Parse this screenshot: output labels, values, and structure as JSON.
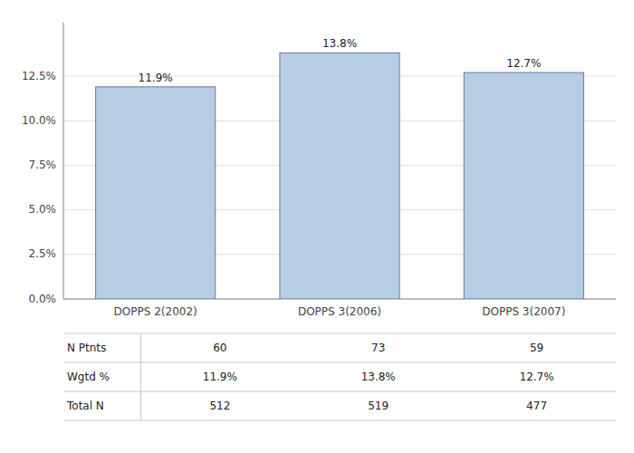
{
  "chart_data": {
    "type": "bar",
    "categories": [
      "DOPPS 2(2002)",
      "DOPPS 3(2006)",
      "DOPPS 3(2007)"
    ],
    "values": [
      11.9,
      13.8,
      12.7
    ],
    "value_labels": [
      "11.9%",
      "13.8%",
      "12.7%"
    ],
    "data_labels": true,
    "color": "#b8cce4",
    "ylim": [
      0,
      15.5
    ],
    "yticks": [
      {
        "value": 0,
        "label": "0.0%"
      },
      {
        "value": 2.5,
        "label": "2.5%"
      },
      {
        "value": 5.0,
        "label": "5.0%"
      },
      {
        "value": 7.5,
        "label": "7.5%"
      },
      {
        "value": 10.0,
        "label": "10.0%"
      },
      {
        "value": 12.5,
        "label": "12.5%"
      }
    ],
    "grid": true,
    "table": {
      "row_labels": [
        "N Ptnts",
        "Wgtd %",
        "Total N"
      ],
      "rows": [
        [
          "60",
          "73",
          "59"
        ],
        [
          "11.9%",
          "13.8%",
          "12.7%"
        ],
        [
          "512",
          "519",
          "477"
        ]
      ]
    }
  }
}
